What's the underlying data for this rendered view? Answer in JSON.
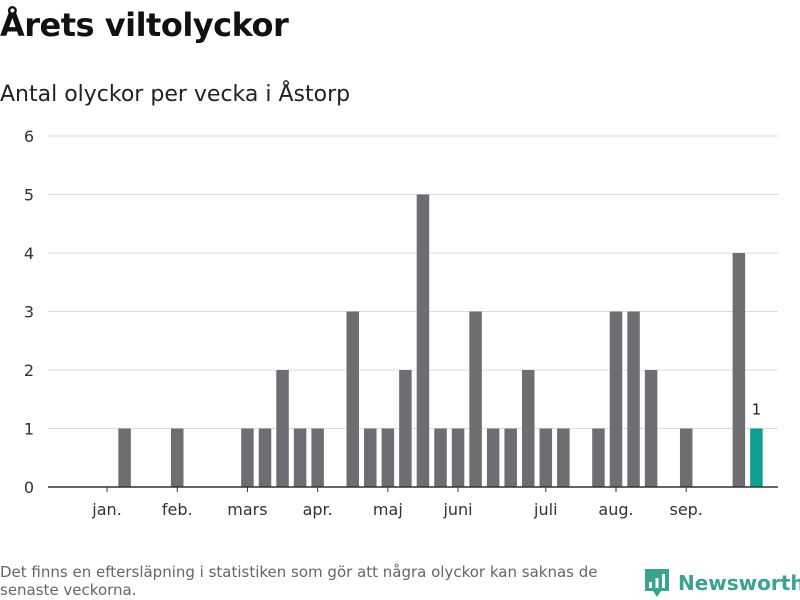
{
  "title": "Årets viltolyckor",
  "subtitle": "Antal olyckor per vecka i Åstorp",
  "footnote": "Det finns en eftersläpning i statistiken som gör att några olyckor kan saknas de senaste veckorna.",
  "brand": {
    "name": "Newsworthy",
    "icon": "newsworthy-logo-icon",
    "color": "#3aa38f"
  },
  "colors": {
    "bar": "#6e6d72",
    "highlight": "#0f9e8f",
    "grid": "#dcdcdc",
    "axis": "#333333"
  },
  "chart_data": {
    "type": "bar",
    "title": "Antal olyckor per vecka i Åstorp",
    "xlabel": "",
    "ylabel": "",
    "ylim": [
      0,
      6
    ],
    "yticks": [
      "0",
      "1",
      "2",
      "3",
      "4",
      "5",
      "6"
    ],
    "grid": true,
    "month_labels": [
      {
        "label": "jan.",
        "week": 2
      },
      {
        "label": "feb.",
        "week": 6
      },
      {
        "label": "mars",
        "week": 10
      },
      {
        "label": "apr.",
        "week": 14
      },
      {
        "label": "maj",
        "week": 18
      },
      {
        "label": "juni",
        "week": 22
      },
      {
        "label": "juli",
        "week": 27
      },
      {
        "label": "aug.",
        "week": 31
      },
      {
        "label": "sep.",
        "week": 35
      }
    ],
    "weeks": [
      1,
      2,
      3,
      4,
      5,
      6,
      7,
      8,
      9,
      10,
      11,
      12,
      13,
      14,
      15,
      16,
      17,
      18,
      19,
      20,
      21,
      22,
      23,
      24,
      25,
      26,
      27,
      28,
      29,
      30,
      31,
      32,
      33,
      34,
      35,
      36,
      37,
      38,
      39,
      40
    ],
    "values": [
      0,
      0,
      1,
      0,
      0,
      1,
      0,
      0,
      0,
      1,
      1,
      2,
      1,
      1,
      0,
      3,
      1,
      1,
      2,
      5,
      1,
      1,
      3,
      1,
      1,
      2,
      1,
      1,
      0,
      1,
      3,
      3,
      2,
      0,
      1,
      0,
      0,
      4,
      1,
      0
    ],
    "highlight_week": 39,
    "highlight_label": "1"
  }
}
